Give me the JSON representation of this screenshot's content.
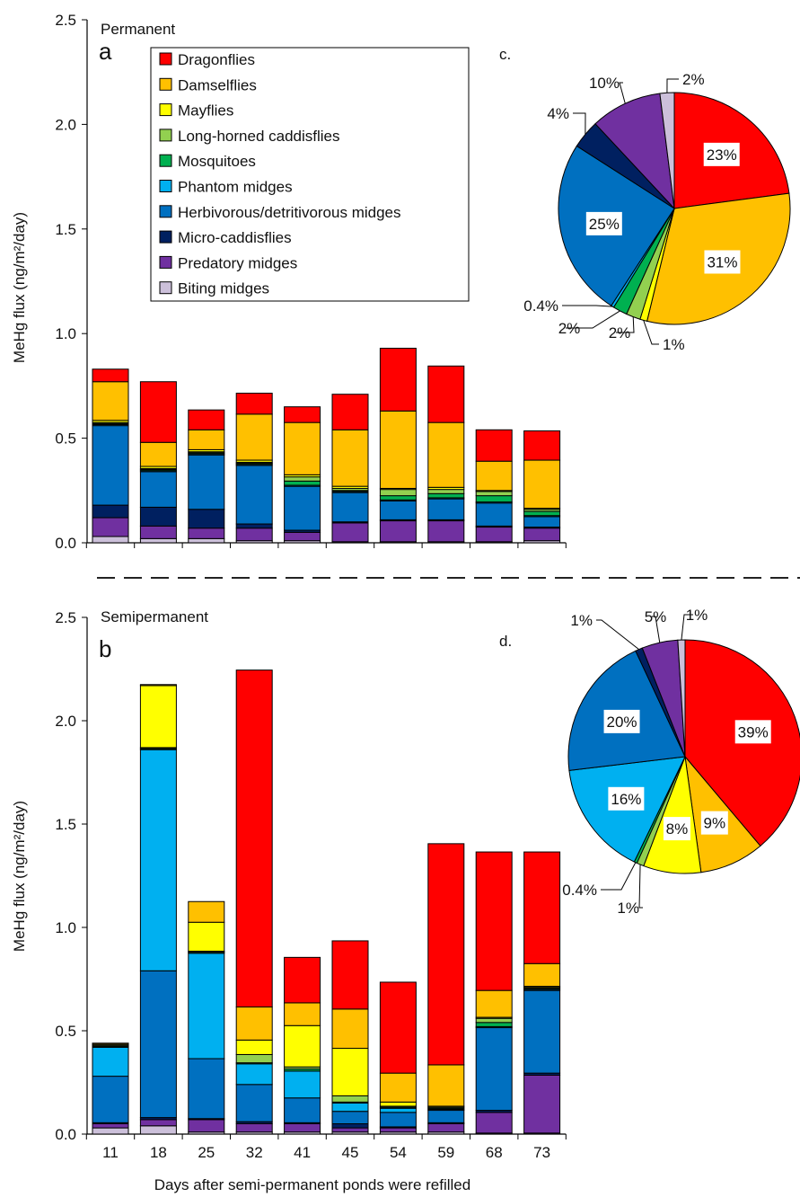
{
  "chart_data": [
    {
      "type": "bar",
      "panel": "a",
      "title": "Permanent",
      "ylabel": "MeHg flux (ng/m²/day)",
      "ylim": [
        0,
        2.5
      ],
      "yticks": [
        "0.0",
        "0.5",
        "1.0",
        "1.5",
        "2.0",
        "2.5"
      ],
      "categories": [
        "11",
        "18",
        "25",
        "32",
        "41",
        "45",
        "54",
        "59",
        "68",
        "73"
      ],
      "stacked": true,
      "series": [
        {
          "name": "Biting midges",
          "values": [
            0.03,
            0.02,
            0.02,
            0.01,
            0.01,
            0.005,
            0.005,
            0.005,
            0.005,
            0.01
          ]
        },
        {
          "name": "Predatory midges",
          "values": [
            0.09,
            0.06,
            0.05,
            0.06,
            0.04,
            0.09,
            0.1,
            0.1,
            0.07,
            0.06
          ]
        },
        {
          "name": "Micro-caddisflies",
          "values": [
            0.06,
            0.09,
            0.09,
            0.02,
            0.01,
            0.005,
            0.005,
            0.005,
            0.005,
            0.005
          ]
        },
        {
          "name": "Herbivorous/detritivorous midges",
          "values": [
            0.38,
            0.17,
            0.26,
            0.28,
            0.21,
            0.14,
            0.09,
            0.1,
            0.11,
            0.05
          ]
        },
        {
          "name": "Phantom midges",
          "values": [
            0.005,
            0.005,
            0.005,
            0.005,
            0.005,
            0.005,
            0.005,
            0.005,
            0.005,
            0.005
          ]
        },
        {
          "name": "Mosquitoes",
          "values": [
            0.005,
            0.005,
            0.005,
            0.005,
            0.02,
            0.005,
            0.02,
            0.02,
            0.03,
            0.02
          ]
        },
        {
          "name": "Long-horned caddisflies",
          "values": [
            0.005,
            0.005,
            0.005,
            0.005,
            0.02,
            0.01,
            0.03,
            0.02,
            0.02,
            0.01
          ]
        },
        {
          "name": "Mayflies",
          "values": [
            0.01,
            0.01,
            0.01,
            0.01,
            0.01,
            0.01,
            0.005,
            0.01,
            0.005,
            0.005
          ]
        },
        {
          "name": "Damselflies",
          "values": [
            0.185,
            0.115,
            0.095,
            0.22,
            0.25,
            0.27,
            0.37,
            0.31,
            0.14,
            0.23
          ]
        },
        {
          "name": "Dragonflies",
          "values": [
            0.06,
            0.29,
            0.095,
            0.1,
            0.075,
            0.17,
            0.3,
            0.27,
            0.15,
            0.14
          ]
        }
      ],
      "legend": {
        "placement": "top",
        "entries": [
          "Dragonflies",
          "Damselflies",
          "Mayflies",
          "Long-horned caddisflies",
          "Mosquitoes",
          "Phantom midges",
          "Herbivorous/detritivorous midges",
          "Micro-caddisflies",
          "Predatory midges",
          "Biting midges"
        ]
      }
    },
    {
      "type": "bar",
      "panel": "b",
      "title": "Semipermanent",
      "xlabel": "Days after semi-permanent ponds were refilled",
      "ylabel": "MeHg flux (ng/m²/day)",
      "ylim": [
        0,
        2.5
      ],
      "yticks": [
        "0.0",
        "0.5",
        "1.0",
        "1.5",
        "2.0",
        "2.5"
      ],
      "categories": [
        "11",
        "18",
        "25",
        "32",
        "41",
        "45",
        "54",
        "59",
        "68",
        "73"
      ],
      "stacked": true,
      "series": [
        {
          "name": "Biting midges",
          "values": [
            0.03,
            0.04,
            0.01,
            0.01,
            0.01,
            0.01,
            0.01,
            0.01,
            0.005,
            0.005
          ]
        },
        {
          "name": "Predatory midges",
          "values": [
            0.02,
            0.03,
            0.06,
            0.04,
            0.04,
            0.02,
            0.02,
            0.04,
            0.1,
            0.28
          ]
        },
        {
          "name": "Micro-caddisflies",
          "values": [
            0.005,
            0.01,
            0.005,
            0.01,
            0.005,
            0.02,
            0.005,
            0.005,
            0.01,
            0.01
          ]
        },
        {
          "name": "Herbivorous/detritivorous midges",
          "values": [
            0.225,
            0.71,
            0.29,
            0.18,
            0.12,
            0.06,
            0.07,
            0.06,
            0.4,
            0.4
          ]
        },
        {
          "name": "Phantom midges",
          "values": [
            0.14,
            1.07,
            0.51,
            0.1,
            0.13,
            0.04,
            0.02,
            0.005,
            0.005,
            0.005
          ]
        },
        {
          "name": "Mosquitoes",
          "values": [
            0.005,
            0.005,
            0.005,
            0.005,
            0.01,
            0.005,
            0.005,
            0.005,
            0.02,
            0.005
          ]
        },
        {
          "name": "Long-horned caddisflies",
          "values": [
            0.005,
            0.005,
            0.005,
            0.04,
            0.01,
            0.03,
            0.005,
            0.005,
            0.02,
            0.005
          ]
        },
        {
          "name": "Mayflies",
          "values": [
            0.005,
            0.3,
            0.14,
            0.07,
            0.2,
            0.23,
            0.02,
            0.005,
            0.005,
            0.005
          ]
        },
        {
          "name": "Damselflies",
          "values": [
            0.005,
            0.005,
            0.1,
            0.16,
            0.11,
            0.19,
            0.14,
            0.2,
            0.13,
            0.11
          ]
        },
        {
          "name": "Dragonflies",
          "values": [
            0.0,
            0.0,
            0.0,
            1.63,
            0.22,
            0.33,
            0.44,
            1.07,
            0.67,
            0.54
          ]
        }
      ]
    },
    {
      "type": "pie",
      "panel": "c.",
      "slices": [
        {
          "name": "Dragonflies",
          "value": 23,
          "label": "23%",
          "boxed": true
        },
        {
          "name": "Damselflies",
          "value": 31,
          "label": "31%",
          "boxed": true
        },
        {
          "name": "Mayflies",
          "value": 1,
          "label": "1%",
          "boxed": false
        },
        {
          "name": "Long-horned caddisflies",
          "value": 2,
          "label": "2%",
          "boxed": false
        },
        {
          "name": "Mosquitoes",
          "value": 2,
          "label": "2%",
          "boxed": false
        },
        {
          "name": "Phantom midges",
          "value": 0.4,
          "label": "0.4%",
          "boxed": false
        },
        {
          "name": "Herbivorous/detritivorous midges",
          "value": 25,
          "label": "25%",
          "boxed": true
        },
        {
          "name": "Micro-caddisflies",
          "value": 4,
          "label": "4%",
          "boxed": false
        },
        {
          "name": "Predatory midges",
          "value": 10,
          "label": "10%",
          "boxed": false
        },
        {
          "name": "Biting midges",
          "value": 2,
          "label": "2%",
          "boxed": false
        }
      ]
    },
    {
      "type": "pie",
      "panel": "d.",
      "slices": [
        {
          "name": "Dragonflies",
          "value": 39,
          "label": "39%",
          "boxed": true
        },
        {
          "name": "Damselflies",
          "value": 9,
          "label": "9%",
          "boxed": true
        },
        {
          "name": "Mayflies",
          "value": 8,
          "label": "8%",
          "boxed": true
        },
        {
          "name": "Long-horned caddisflies",
          "value": 1,
          "label": "1%",
          "boxed": false
        },
        {
          "name": "Mosquitoes",
          "value": 0.4,
          "label": "0.4%",
          "boxed": false
        },
        {
          "name": "Phantom midges",
          "value": 16,
          "label": "16%",
          "boxed": true
        },
        {
          "name": "Herbivorous/detritivorous midges",
          "value": 20,
          "label": "20%",
          "boxed": true
        },
        {
          "name": "Micro-caddisflies",
          "value": 1,
          "label": "1%",
          "boxed": false
        },
        {
          "name": "Predatory midges",
          "value": 5,
          "label": "5%",
          "boxed": false
        },
        {
          "name": "Biting midges",
          "value": 1,
          "label": "1%",
          "boxed": false
        }
      ]
    }
  ],
  "colors": {
    "Dragonflies": "#ff0000",
    "Damselflies": "#ffc000",
    "Mayflies": "#ffff00",
    "Long-horned caddisflies": "#92d050",
    "Mosquitoes": "#00b050",
    "Phantom midges": "#00b0f0",
    "Herbivorous/detritivorous midges": "#0070c0",
    "Micro-caddisflies": "#002060",
    "Predatory midges": "#7030a0",
    "Biting midges": "#ccc0da"
  }
}
